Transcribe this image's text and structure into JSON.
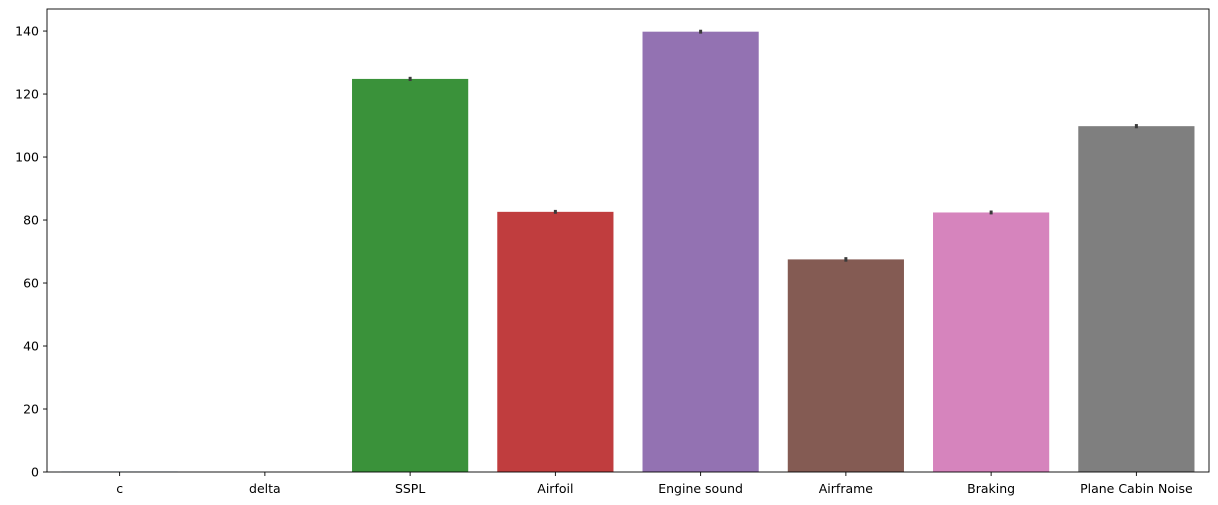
{
  "chart_data": {
    "type": "bar",
    "title": "",
    "xlabel": "",
    "ylabel": "",
    "categories": [
      "c",
      "delta",
      "SSPL",
      "Airfoil",
      "Engine sound",
      "Airframe",
      "Braking",
      "Plane Cabin Noise"
    ],
    "values": [
      0.14,
      0.011,
      124.8,
      82.6,
      139.8,
      67.5,
      82.4,
      109.8
    ],
    "error": [
      0.0,
      0.0,
      0.35,
      0.3,
      0.3,
      0.4,
      0.3,
      0.35
    ],
    "colors": [
      "#1f77b4",
      "#ff7f0e",
      "#3a923a",
      "#c03d3e",
      "#9372b2",
      "#845b53",
      "#d684bd",
      "#7f7f7f"
    ],
    "ylim": [
      0,
      147
    ],
    "yticks": [
      0,
      20,
      40,
      60,
      80,
      100,
      120,
      140
    ],
    "grid": false,
    "legend": "none"
  }
}
